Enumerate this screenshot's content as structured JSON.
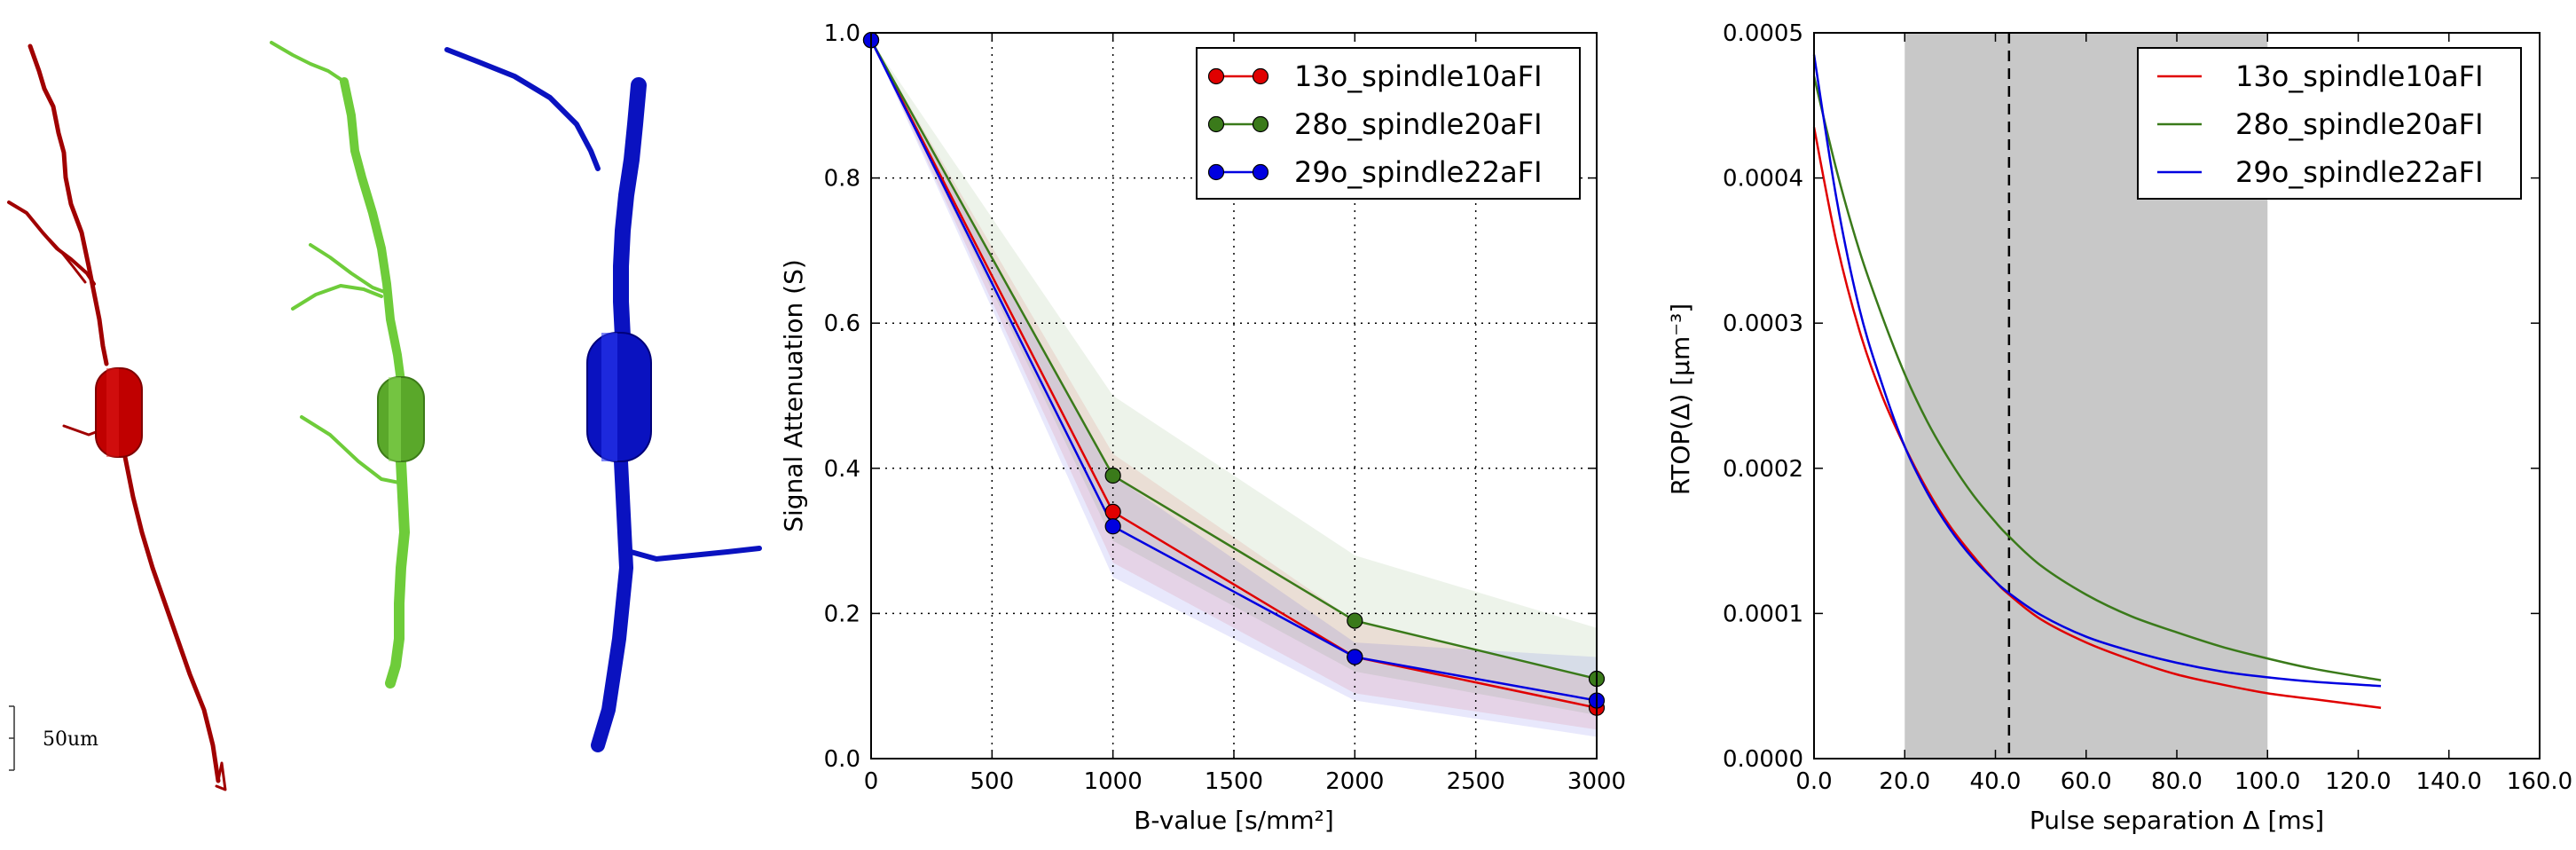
{
  "scale_bar": {
    "label": "50um"
  },
  "neurons": [
    {
      "name": "neuron-red",
      "color": "#b00000"
    },
    {
      "name": "neuron-green",
      "color": "#6ecc3a"
    },
    {
      "name": "neuron-blue",
      "color": "#0a12c0"
    }
  ],
  "chart_data": [
    {
      "type": "line",
      "title": "",
      "xlabel": "B-value [s/mm²]",
      "ylabel": "Signal Attenuation (S)",
      "xlim": [
        0,
        3000
      ],
      "ylim": [
        0.0,
        1.0
      ],
      "grid": true,
      "legend": "top-right",
      "xticks": [
        "0",
        "500",
        "1000",
        "1500",
        "2000",
        "2500",
        "3000"
      ],
      "yticks": [
        "0.0",
        "0.2",
        "0.4",
        "0.6",
        "0.8",
        "1.0"
      ],
      "x": [
        0,
        1000,
        2000,
        3000
      ],
      "series": [
        {
          "name": "13o_spindle10aFI",
          "color": "#e00000",
          "values": [
            0.99,
            0.34,
            0.14,
            0.07
          ],
          "band_lower": [
            0.99,
            0.27,
            0.09,
            0.04
          ],
          "band_upper": [
            0.99,
            0.42,
            0.19,
            0.11
          ]
        },
        {
          "name": "28o_spindle20aFI",
          "color": "#3a7a1a",
          "values": [
            0.99,
            0.39,
            0.19,
            0.11
          ],
          "band_lower": [
            0.99,
            0.3,
            0.12,
            0.06
          ],
          "band_upper": [
            0.99,
            0.5,
            0.28,
            0.18
          ]
        },
        {
          "name": "29o_spindle22aFI",
          "color": "#0000e0",
          "values": [
            0.99,
            0.32,
            0.14,
            0.08
          ],
          "band_lower": [
            0.99,
            0.25,
            0.08,
            0.03
          ],
          "band_upper": [
            0.99,
            0.39,
            0.16,
            0.14
          ]
        }
      ]
    },
    {
      "type": "line",
      "title": "",
      "xlabel": "Pulse separation Δ [ms]",
      "ylabel": "RTOP(Δ) [μm⁻³]",
      "xlim": [
        0,
        160
      ],
      "ylim": [
        0.0,
        0.0005
      ],
      "grid": false,
      "legend": "top-right",
      "xticks": [
        "0.0",
        "20.0",
        "40.0",
        "60.0",
        "80.0",
        "100.0",
        "120.0",
        "140.0",
        "160.0"
      ],
      "yticks": [
        "0.0000",
        "0.0001",
        "0.0002",
        "0.0003",
        "0.0004",
        "0.0005"
      ],
      "shaded_region": [
        20,
        100
      ],
      "vline": 43,
      "x": [
        0,
        5,
        10,
        15,
        20,
        25,
        30,
        35,
        40,
        43,
        50,
        60,
        70,
        80,
        90,
        100,
        110,
        125
      ],
      "series": [
        {
          "name": "13o_spindle10aFI",
          "color": "#e00000",
          "values": [
            0.000435,
            0.000355,
            0.000295,
            0.00025,
            0.000215,
            0.000185,
            0.00016,
            0.00014,
            0.000122,
            0.000113,
            9.6e-05,
            8e-05,
            6.8e-05,
            5.8e-05,
            5.1e-05,
            4.5e-05,
            4.1e-05,
            3.5e-05
          ]
        },
        {
          "name": "28o_spindle20aFI",
          "color": "#3a7a1a",
          "values": [
            0.00047,
            0.000405,
            0.00035,
            0.000305,
            0.000265,
            0.000232,
            0.000205,
            0.000182,
            0.000163,
            0.000153,
            0.000133,
            0.000113,
            9.8e-05,
            8.7e-05,
            7.7e-05,
            6.9e-05,
            6.2e-05,
            5.4e-05
          ]
        },
        {
          "name": "29o_spindle22aFI",
          "color": "#0000e0",
          "values": [
            0.000485,
            0.000385,
            0.00031,
            0.000258,
            0.000215,
            0.000183,
            0.000158,
            0.000138,
            0.000122,
            0.000114,
            9.9e-05,
            8.4e-05,
            7.4e-05,
            6.6e-05,
            6e-05,
            5.6e-05,
            5.3e-05,
            5e-05
          ]
        }
      ]
    }
  ]
}
